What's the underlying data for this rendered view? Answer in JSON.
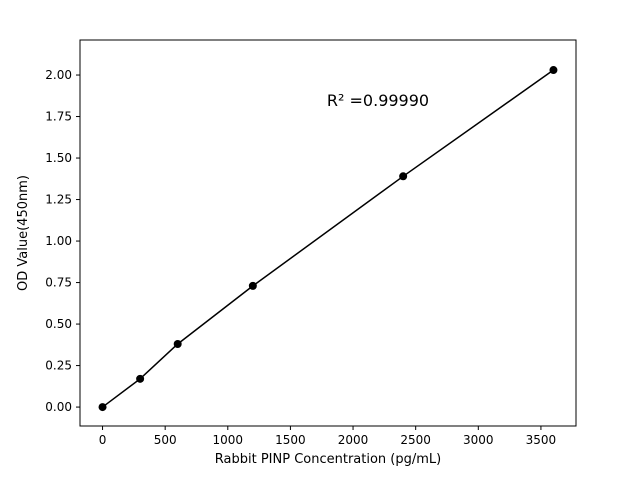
{
  "figure": {
    "background": "#ffffff"
  },
  "chart_data": {
    "type": "scatter",
    "title": "",
    "xlabel": "Rabbit PINP Concentration (pg/mL)",
    "ylabel": "OD Value(450nm)",
    "annotation": "R² =0.99990",
    "x": [
      0,
      300,
      600,
      1200,
      2400,
      3600
    ],
    "y": [
      0.0,
      0.17,
      0.38,
      0.73,
      1.39,
      2.03
    ],
    "xlim": [
      -180,
      3780
    ],
    "ylim": [
      -0.114,
      2.211
    ],
    "xticks": [
      0,
      500,
      1000,
      1500,
      2000,
      2500,
      3000,
      3500
    ],
    "yticks": [
      0.0,
      0.25,
      0.5,
      0.75,
      1.0,
      1.25,
      1.5,
      1.75,
      2.0
    ],
    "ytick_decimals": 2,
    "grid": false,
    "legend": null,
    "line_color": "#000000",
    "marker_color": "#000000",
    "marker_radius": 4,
    "line_width": 1.5
  }
}
